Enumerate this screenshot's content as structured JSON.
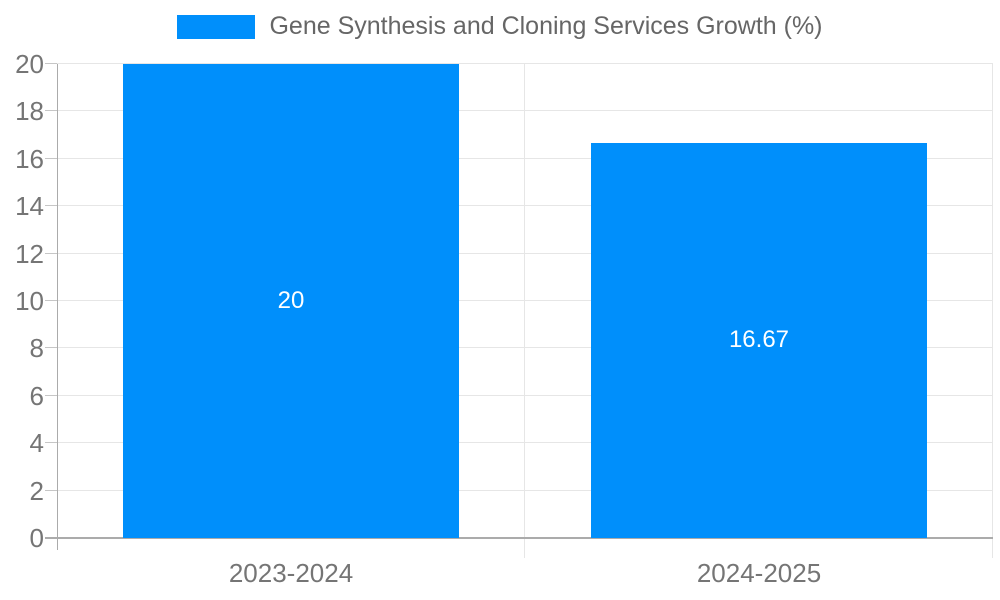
{
  "chart_data": {
    "type": "bar",
    "title": "Gene Synthesis and Cloning Services Growth (%)",
    "categories": [
      "2023-2024",
      "2024-2025"
    ],
    "values": [
      20,
      16.67
    ],
    "value_labels": [
      "20",
      "16.67"
    ],
    "yticks": [
      0,
      2,
      4,
      6,
      8,
      10,
      12,
      14,
      16,
      18,
      20
    ],
    "ylim": [
      0,
      20
    ],
    "xlabel": "",
    "ylabel": "",
    "legend_position": "top",
    "grid": true,
    "colors": {
      "bar": "#008ffb",
      "grid": "#e6e6e6",
      "axis": "#ababab",
      "tick": "#c6c6c6",
      "tick_label": "#757575",
      "legend_text": "#666666",
      "value_label": "#ffffff",
      "background": "#ffffff"
    }
  }
}
